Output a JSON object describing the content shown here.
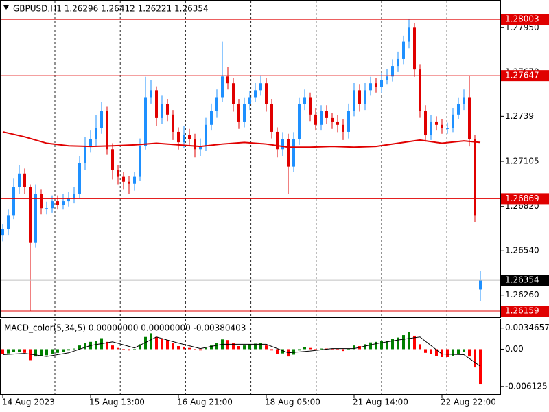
{
  "chart_data": {
    "type": "candlestick",
    "title": "GBPUSD,H1  1.26296 1.26412 1.26221 1.26354",
    "categories": [
      "14 Aug 2023",
      null,
      null,
      null,
      null,
      null,
      null,
      null,
      null,
      null,
      null,
      null,
      null,
      null,
      null,
      null,
      "15 Aug 13:00",
      null,
      null,
      null,
      null,
      null,
      null,
      null,
      null,
      null,
      null,
      null,
      null,
      null,
      null,
      null,
      "16 Aug 21:00",
      null,
      null,
      null,
      null,
      null,
      null,
      null,
      null,
      null,
      null,
      null,
      null,
      null,
      null,
      null,
      "18 Aug 05:00",
      null,
      null,
      null,
      null,
      null,
      null,
      null,
      null,
      null,
      null,
      null,
      null,
      null,
      null,
      null,
      "21 Aug 14:00",
      null,
      null,
      null,
      null,
      null,
      null,
      null,
      null,
      null,
      null,
      null,
      null,
      null,
      null,
      null,
      "22 Aug 22:00",
      null,
      null,
      null,
      null,
      null,
      null,
      null
    ],
    "open": [
      1.2664,
      1.26678,
      1.26765,
      1.26941,
      1.27028,
      1.26941,
      1.2659,
      1.26897,
      1.26809,
      1.26809,
      1.26853,
      1.26831,
      1.26853,
      1.26875,
      1.26897,
      1.27094,
      1.27204,
      1.27248,
      1.27314,
      1.27423,
      1.27182,
      1.2705,
      1.27007,
      1.26976,
      1.26963,
      1.27007,
      1.27204,
      1.27511,
      1.27555,
      1.27379,
      1.27467,
      1.27401,
      1.27292,
      1.27226,
      1.2727,
      1.27248,
      1.27182,
      1.27204,
      1.27336,
      1.27423,
      1.27511,
      1.27642,
      1.27599,
      1.27467,
      1.27357,
      1.27467,
      1.27511,
      1.27555,
      1.27599,
      1.27467,
      1.27292,
      1.27182,
      1.27248,
      1.27072,
      1.27248,
      1.27467,
      1.27511,
      1.27401,
      1.27336,
      1.27423,
      1.27379,
      1.27357,
      1.27336,
      1.27292,
      1.27423,
      1.27555,
      1.27467,
      1.27555,
      1.27599,
      1.27577,
      1.2762,
      1.27642,
      1.27708,
      1.27752,
      1.27862,
      1.2795,
      1.27686,
      1.27423,
      1.2727,
      1.27357,
      1.27336,
      1.27314,
      1.27314,
      1.27401,
      1.27467,
      1.27511,
      1.27248,
      1.26296
    ],
    "high": [
      1.2671,
      1.268,
      1.27,
      1.2708,
      1.2706,
      1.2696,
      1.2696,
      1.2693,
      1.2685,
      1.2689,
      1.2689,
      1.269,
      1.2691,
      1.2694,
      1.2714,
      1.2726,
      1.273,
      1.274,
      1.2748,
      1.2745,
      1.2722,
      1.2708,
      1.2704,
      1.2701,
      1.2704,
      1.2725,
      1.2764,
      1.2762,
      1.2758,
      1.2752,
      1.275,
      1.2743,
      1.2732,
      1.2733,
      1.2731,
      1.2728,
      1.2725,
      1.2738,
      1.2747,
      1.2756,
      1.27862,
      1.277,
      1.2763,
      1.275,
      1.2751,
      1.2755,
      1.276,
      1.2765,
      1.2763,
      1.275,
      1.2732,
      1.2729,
      1.2728,
      1.2729,
      1.2751,
      1.2756,
      1.2754,
      1.2744,
      1.2746,
      1.2746,
      1.2741,
      1.274,
      1.2737,
      1.2747,
      1.276,
      1.2759,
      1.276,
      1.2764,
      1.2763,
      1.2766,
      1.2769,
      1.2775,
      1.278,
      1.279,
      1.28003,
      1.2798,
      1.2772,
      1.2746,
      1.274,
      1.2739,
      1.2737,
      1.2735,
      1.2744,
      1.2751,
      1.2756,
      1.27647,
      1.2727,
      1.26412
    ],
    "low": [
      1.266,
      1.2664,
      1.2674,
      1.269,
      1.269,
      1.26159,
      1.2656,
      1.2677,
      1.2677,
      1.2678,
      1.268,
      1.268,
      1.2682,
      1.2684,
      1.2687,
      1.2705,
      1.2716,
      1.272,
      1.2728,
      1.2715,
      1.2699,
      1.2696,
      1.2693,
      1.269,
      1.2692,
      1.2698,
      1.2718,
      1.2747,
      1.2733,
      1.2734,
      1.2736,
      1.2724,
      1.2718,
      1.2719,
      1.272,
      1.2713,
      1.2714,
      1.2717,
      1.273,
      1.2738,
      1.2748,
      1.2756,
      1.2742,
      1.2731,
      1.2732,
      1.2743,
      1.2748,
      1.2752,
      1.2742,
      1.2725,
      1.2713,
      1.2714,
      1.269,
      1.2704,
      1.2721,
      1.2743,
      1.2736,
      1.273,
      1.273,
      1.2734,
      1.2731,
      1.2729,
      1.2724,
      1.2725,
      1.2739,
      1.2742,
      1.2743,
      1.2752,
      1.2754,
      1.2754,
      1.2759,
      1.2761,
      1.2767,
      1.2772,
      1.2782,
      1.2764,
      1.2738,
      1.2723,
      1.2724,
      1.273,
      1.2728,
      1.2728,
      1.2729,
      1.2737,
      1.2743,
      1.272,
      1.2672,
      1.26221
    ],
    "close": [
      1.26678,
      1.26765,
      1.26941,
      1.27028,
      1.26941,
      1.2659,
      1.26897,
      1.26809,
      1.26809,
      1.26853,
      1.26831,
      1.26853,
      1.26875,
      1.26897,
      1.27094,
      1.27204,
      1.27248,
      1.27314,
      1.27423,
      1.27182,
      1.2705,
      1.27007,
      1.26976,
      1.26963,
      1.27007,
      1.27204,
      1.27511,
      1.27555,
      1.27379,
      1.27467,
      1.27401,
      1.27292,
      1.27226,
      1.2727,
      1.27248,
      1.27182,
      1.27204,
      1.27336,
      1.27423,
      1.27511,
      1.27642,
      1.27599,
      1.27467,
      1.27357,
      1.27467,
      1.27511,
      1.27555,
      1.27599,
      1.27467,
      1.27292,
      1.27182,
      1.27248,
      1.27072,
      1.27248,
      1.27467,
      1.27511,
      1.27401,
      1.27336,
      1.27423,
      1.27379,
      1.27357,
      1.27336,
      1.27292,
      1.27423,
      1.27555,
      1.27467,
      1.27555,
      1.27599,
      1.27577,
      1.2762,
      1.27642,
      1.27708,
      1.27752,
      1.27862,
      1.2795,
      1.27686,
      1.27423,
      1.2727,
      1.27357,
      1.27336,
      1.27314,
      1.27314,
      1.27401,
      1.27467,
      1.27511,
      1.27248,
      1.26765,
      1.26354
    ],
    "up_color": "#1e90ff",
    "down_color": "#e00000",
    "ylim": [
      1.2612,
      1.28125
    ],
    "yticks": [
      {
        "value": 1.2795,
        "label": "1.27950"
      },
      {
        "value": 1.2767,
        "label": "1.27670"
      },
      1.2739,
      {
        "value": 1.27105,
        "label": "1.27105"
      },
      {
        "value": 1.2682,
        "label": "1.26820"
      },
      {
        "value": 1.2654,
        "label": "1.26540"
      },
      {
        "value": 1.2626,
        "label": "1.26260"
      }
    ],
    "levels": [
      1.28003,
      1.27647,
      1.26869,
      1.26159
    ],
    "level_color": "#e00000",
    "current": 1.26354,
    "ma": {
      "x": [
        0,
        4,
        8,
        12,
        16,
        20,
        24,
        28,
        32,
        36,
        40,
        44,
        48,
        52,
        56,
        60,
        64,
        68,
        72,
        76,
        80,
        84,
        87
      ],
      "values": [
        1.27292,
        1.2726,
        1.2722,
        1.27204,
        1.272,
        1.27204,
        1.2721,
        1.2722,
        1.2721,
        1.272,
        1.27215,
        1.27225,
        1.27215,
        1.27195,
        1.27195,
        1.272,
        1.27195,
        1.272,
        1.2722,
        1.2724,
        1.2722,
        1.27235,
        1.27225
      ],
      "color": "#e00000"
    },
    "macd": {
      "title": "MACD_color(5,34,5) 0.00000000 0.00000000 -0.00380403",
      "histogram": [
        -0.0008,
        -0.0007,
        -0.0005,
        -0.0004,
        -0.0006,
        -0.0018,
        -0.0012,
        -0.0011,
        -0.001,
        -0.0008,
        -0.0006,
        -0.0004,
        -0.0002,
        0.0001,
        0.0006,
        0.001,
        0.0012,
        0.0014,
        0.0018,
        0.0012,
        0.0006,
        0.0002,
        -0.0001,
        -0.0002,
        -0.0001,
        0.0008,
        0.002,
        0.0026,
        0.002,
        0.0018,
        0.0015,
        0.001,
        0.0005,
        0.0004,
        0.0002,
        -0.0001,
        -0.0002,
        0.0002,
        0.0006,
        0.001,
        0.0016,
        0.0015,
        0.001,
        0.0005,
        0.0006,
        0.0008,
        0.0009,
        0.001,
        0.0006,
        -0.0002,
        -0.0008,
        -0.0007,
        -0.0012,
        -0.0009,
        -0.0002,
        0.0003,
        0.0002,
        0,
        0.0001,
        0.0001,
        0,
        -0.0001,
        -0.0003,
        0,
        0.0006,
        0.0005,
        0.0008,
        0.0011,
        0.0012,
        0.0013,
        0.0014,
        0.0017,
        0.0019,
        0.0023,
        0.0028,
        0.0022,
        0.0008,
        -0.0006,
        -0.0008,
        -0.0011,
        -0.0013,
        -0.0013,
        -0.0011,
        -0.0008,
        -0.0005,
        -0.0012,
        -0.003,
        -0.0057
      ],
      "up_color": "#008000",
      "down_color": "#ff0000",
      "signal": {
        "x": [
          0,
          4,
          8,
          12,
          16,
          20,
          24,
          28,
          32,
          36,
          40,
          44,
          48,
          52,
          56,
          60,
          64,
          68,
          72,
          76,
          80,
          84,
          87
        ],
        "values": [
          -0.0009,
          -0.0007,
          -0.0012,
          -0.0006,
          0.0006,
          0.0012,
          0.0002,
          0.002,
          0.001,
          0.0001,
          0.0008,
          0.0008,
          0.0008,
          -0.0006,
          -0.0003,
          0.0001,
          0.0001,
          0.0009,
          0.0015,
          0.002,
          -0.0008,
          -0.0009,
          -0.0028
        ],
        "color": "#000000"
      },
      "ylim": [
        -0.0075,
        0.0049
      ],
      "yticks": [
        0.0034657,
        {
          "value": 0,
          "label": "0.00"
        },
        -0.006125
      ]
    }
  }
}
